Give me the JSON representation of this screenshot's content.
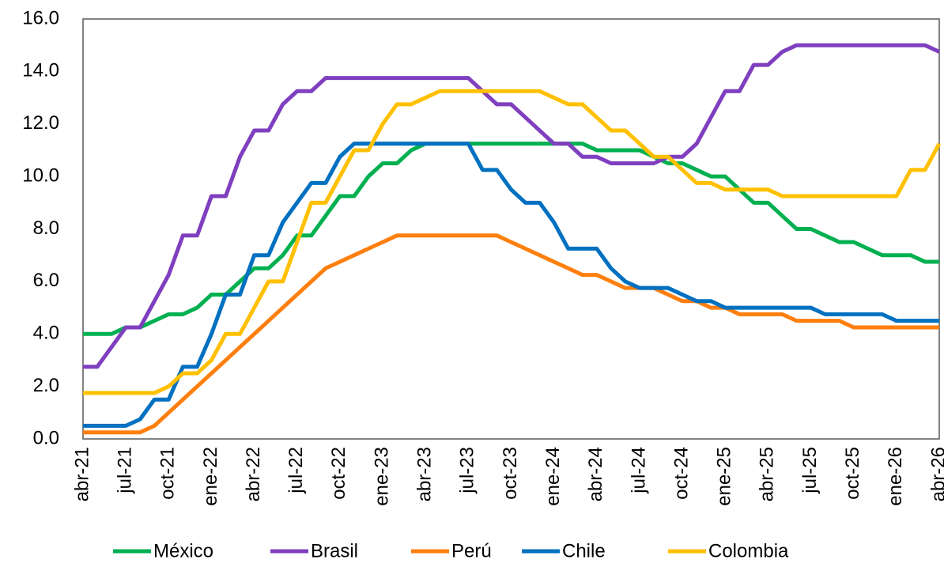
{
  "chart_data": {
    "type": "line",
    "categories": [
      "abr-21",
      null,
      null,
      "jul-21",
      null,
      null,
      "oct-21",
      null,
      null,
      "ene-22",
      null,
      null,
      "abr-22",
      null,
      null,
      "jul-22",
      null,
      null,
      "oct-22",
      null,
      null,
      "ene-23",
      null,
      null,
      "abr-23",
      null,
      null,
      "jul-23",
      null,
      null,
      "oct-23",
      null,
      null,
      "ene-24",
      null,
      null,
      "abr-24",
      null,
      null,
      "jul-24",
      null,
      null,
      "oct-24",
      null,
      null,
      "ene-25",
      null,
      null,
      "abr-25",
      null,
      null,
      "jul-25",
      null,
      null,
      "oct-25",
      null,
      null,
      "ene-26",
      null,
      null,
      "abr-26"
    ],
    "series": [
      {
        "name": "México",
        "color": "#00b050",
        "values": [
          4,
          4,
          4,
          4.25,
          4.25,
          4.5,
          4.75,
          4.75,
          5,
          5.5,
          5.5,
          6,
          6.5,
          6.5,
          7,
          7.75,
          7.75,
          8.5,
          9.25,
          9.25,
          10,
          10.5,
          10.5,
          11,
          11.25,
          11.25,
          11.25,
          11.25,
          11.25,
          11.25,
          11.25,
          11.25,
          11.25,
          11.25,
          11.25,
          11.25,
          11,
          11,
          11,
          11,
          10.75,
          10.5,
          10.5,
          10.25,
          10,
          10,
          9.5,
          9,
          9,
          8.5,
          8,
          8,
          7.75,
          7.5,
          7.5,
          7.25,
          7,
          7,
          7,
          6.75,
          6.75
        ]
      },
      {
        "name": "Brasil",
        "color": "#7f3fbf",
        "values": [
          2.75,
          2.75,
          3.5,
          4.25,
          4.25,
          5.25,
          6.25,
          7.75,
          7.75,
          9.25,
          9.25,
          10.75,
          11.75,
          11.75,
          12.75,
          13.25,
          13.25,
          13.75,
          13.75,
          13.75,
          13.75,
          13.75,
          13.75,
          13.75,
          13.75,
          13.75,
          13.75,
          13.75,
          13.25,
          12.75,
          12.75,
          12.25,
          11.75,
          11.25,
          11.25,
          10.75,
          10.75,
          10.5,
          10.5,
          10.5,
          10.5,
          10.75,
          10.75,
          11.25,
          12.25,
          13.25,
          13.25,
          14.25,
          14.25,
          14.75,
          15,
          15,
          15,
          15,
          15,
          15,
          15,
          15,
          15,
          15,
          14.75
        ]
      },
      {
        "name": "Perú",
        "color": "#ff7f0e",
        "values": [
          0.25,
          0.25,
          0.25,
          0.25,
          0.25,
          0.5,
          1,
          1.5,
          2,
          2.5,
          3,
          3.5,
          4,
          4.5,
          5,
          5.5,
          6,
          6.5,
          6.75,
          7,
          7.25,
          7.5,
          7.75,
          7.75,
          7.75,
          7.75,
          7.75,
          7.75,
          7.75,
          7.75,
          7.5,
          7.25,
          7,
          6.75,
          6.5,
          6.25,
          6.25,
          6,
          5.75,
          5.75,
          5.75,
          5.5,
          5.25,
          5.25,
          5,
          5,
          4.75,
          4.75,
          4.75,
          4.75,
          4.5,
          4.5,
          4.5,
          4.5,
          4.25,
          4.25,
          4.25,
          4.25,
          4.25,
          4.25,
          4.25
        ]
      },
      {
        "name": "Chile",
        "color": "#0070c0",
        "values": [
          0.5,
          0.5,
          0.5,
          0.5,
          0.75,
          1.5,
          1.5,
          2.75,
          2.75,
          4,
          5.5,
          5.5,
          7,
          7,
          8.25,
          9,
          9.75,
          9.75,
          10.75,
          11.25,
          11.25,
          11.25,
          11.25,
          11.25,
          11.25,
          11.25,
          11.25,
          11.25,
          10.25,
          10.25,
          9.5,
          9,
          9,
          8.25,
          7.25,
          7.25,
          7.25,
          6.5,
          6,
          5.75,
          5.75,
          5.75,
          5.5,
          5.25,
          5.25,
          5,
          5,
          5,
          5,
          5,
          5,
          5,
          4.75,
          4.75,
          4.75,
          4.75,
          4.75,
          4.5,
          4.5,
          4.5,
          4.5
        ]
      },
      {
        "name": "Colombia",
        "color": "#ffc000",
        "values": [
          1.75,
          1.75,
          1.75,
          1.75,
          1.75,
          1.75,
          2,
          2.5,
          2.5,
          3,
          4,
          4,
          5,
          6,
          6,
          7.5,
          9,
          9,
          10,
          11,
          11,
          12,
          12.75,
          12.75,
          13,
          13.25,
          13.25,
          13.25,
          13.25,
          13.25,
          13.25,
          13.25,
          13.25,
          13,
          12.75,
          12.75,
          12.25,
          11.75,
          11.75,
          11.25,
          10.75,
          10.75,
          10.25,
          9.75,
          9.75,
          9.5,
          9.5,
          9.5,
          9.5,
          9.25,
          9.25,
          9.25,
          9.25,
          9.25,
          9.25,
          9.25,
          9.25,
          9.25,
          10.25,
          10.25,
          11.25
        ]
      }
    ],
    "ylim": [
      0,
      16
    ],
    "yticks": [
      {
        "value": 0,
        "label": "0.0"
      },
      {
        "value": 2,
        "label": "2.0"
      },
      {
        "value": 4,
        "label": "4.0"
      },
      {
        "value": 6,
        "label": "6.0"
      },
      {
        "value": 8,
        "label": "8.0"
      },
      {
        "value": 10,
        "label": "10.0"
      },
      {
        "value": 12,
        "label": "12.0"
      },
      {
        "value": 14,
        "label": "14.0"
      },
      {
        "value": 16,
        "label": "16.0"
      }
    ],
    "grid": false,
    "legend": "bottom"
  }
}
